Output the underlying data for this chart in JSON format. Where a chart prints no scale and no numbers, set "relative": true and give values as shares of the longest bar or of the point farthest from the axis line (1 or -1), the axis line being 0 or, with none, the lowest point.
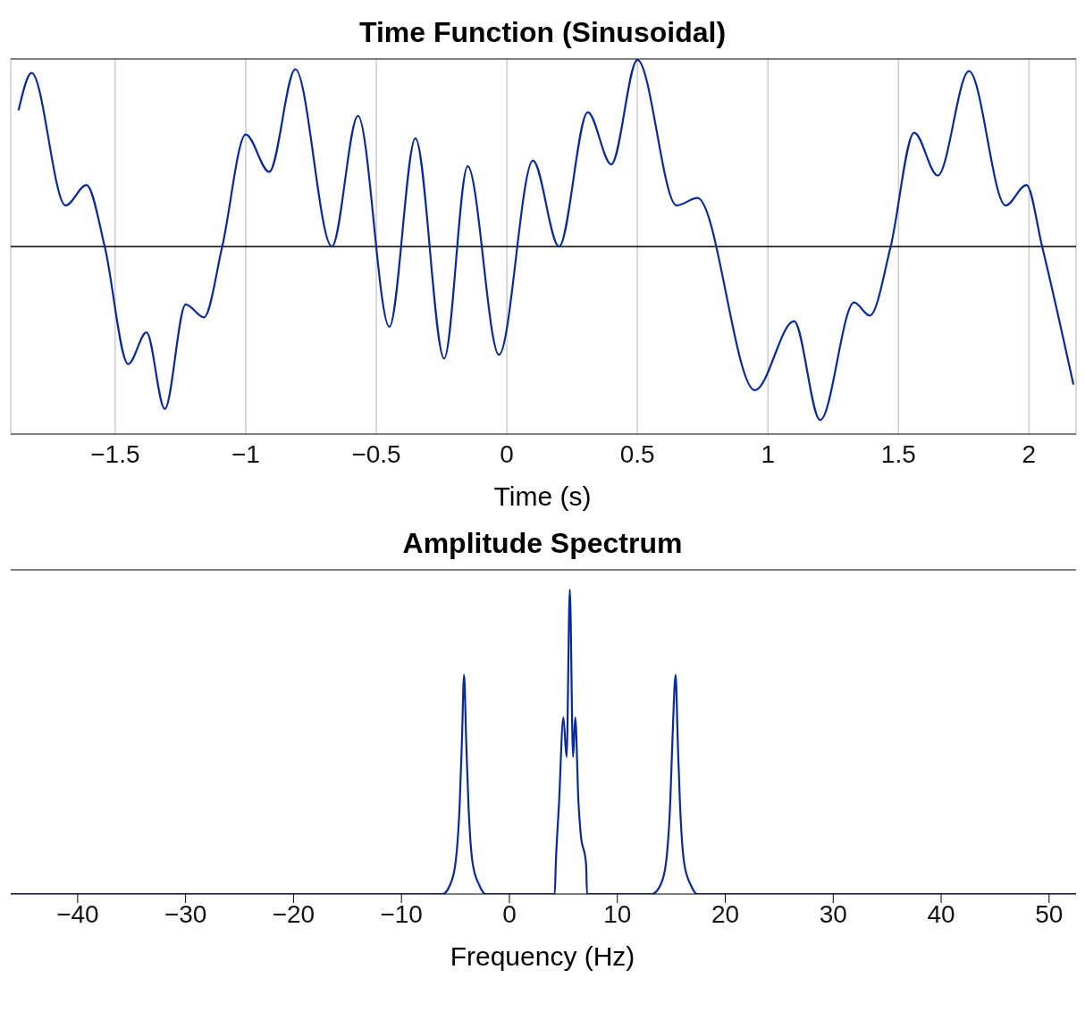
{
  "chart_data": [
    {
      "type": "line",
      "title": "Time Function (Sinusoidal)",
      "xlabel": "Time (s)",
      "relative": true,
      "grid": "x",
      "xlim": [
        -1.9,
        2.18
      ],
      "xticks": [
        {
          "value": -1.5,
          "label": "−1.5"
        },
        {
          "value": -1,
          "label": "−1"
        },
        {
          "value": -0.5,
          "label": "−0.5"
        },
        0,
        0.5,
        1,
        1.5,
        2
      ],
      "series": [
        {
          "color": "#0a2a9c",
          "x": [
            -1.87,
            -1.82,
            -1.69,
            -1.61,
            -1.54,
            -1.45,
            -1.38,
            -1.31,
            -1.23,
            -1.16,
            -1.09,
            -1.0,
            -0.91,
            -0.81,
            -0.67,
            -0.57,
            -0.45,
            -0.35,
            -0.24,
            -0.15,
            -0.03,
            0.1,
            0.2,
            0.31,
            0.4,
            0.5,
            0.65,
            0.73,
            0.95,
            1.1,
            1.2,
            1.33,
            1.39,
            1.47,
            1.56,
            1.65,
            1.77,
            1.91,
            1.99,
            2.05,
            2.17
          ],
          "values": [
            0.73,
            0.93,
            0.22,
            0.33,
            0,
            -0.63,
            -0.46,
            -0.87,
            -0.31,
            -0.38,
            0,
            0.6,
            0.4,
            0.95,
            0,
            0.7,
            -0.43,
            0.58,
            -0.6,
            0.43,
            -0.58,
            0.46,
            0,
            0.72,
            0.44,
            1.0,
            0.22,
            0.26,
            -0.77,
            -0.4,
            -0.93,
            -0.3,
            -0.37,
            0,
            0.61,
            0.38,
            0.94,
            0.22,
            0.33,
            0,
            -0.74
          ]
        }
      ]
    },
    {
      "type": "line",
      "title": "Amplitude Spectrum",
      "xlabel": "Frequency (Hz)",
      "relative": true,
      "xlim": [
        -46.2,
        52.5
      ],
      "xticks": [
        {
          "value": -40,
          "label": "−40"
        },
        {
          "value": -30,
          "label": "−30"
        },
        {
          "value": -20,
          "label": "−20"
        },
        {
          "value": -10,
          "label": "−10"
        },
        0,
        10,
        20,
        30,
        40,
        50
      ],
      "series": [
        {
          "color": "#0a2a9c",
          "x": [
            -46.2,
            -6.2,
            -5.5,
            -5,
            -4.6,
            -4.4,
            -4.2,
            -4,
            -3.8,
            -3.4,
            -2.8,
            -2.2,
            4.2,
            4.3,
            4.6,
            5,
            5.3,
            5.6,
            5.9,
            6.1,
            6.4,
            6.6,
            7.1,
            7.2,
            13.2,
            14,
            14.5,
            14.9,
            15.1,
            15.4,
            15.6,
            15.8,
            16.2,
            16.8,
            17.4,
            52.5
          ],
          "values": [
            0,
            0,
            0.03,
            0.1,
            0.3,
            0.5,
            0.72,
            0.5,
            0.3,
            0.1,
            0.03,
            0,
            0,
            0.1,
            0.3,
            0.58,
            0.45,
            1.0,
            0.45,
            0.58,
            0.3,
            0.2,
            0.1,
            0,
            0,
            0.03,
            0.1,
            0.3,
            0.5,
            0.72,
            0.5,
            0.3,
            0.1,
            0.03,
            0,
            0
          ]
        }
      ]
    }
  ]
}
